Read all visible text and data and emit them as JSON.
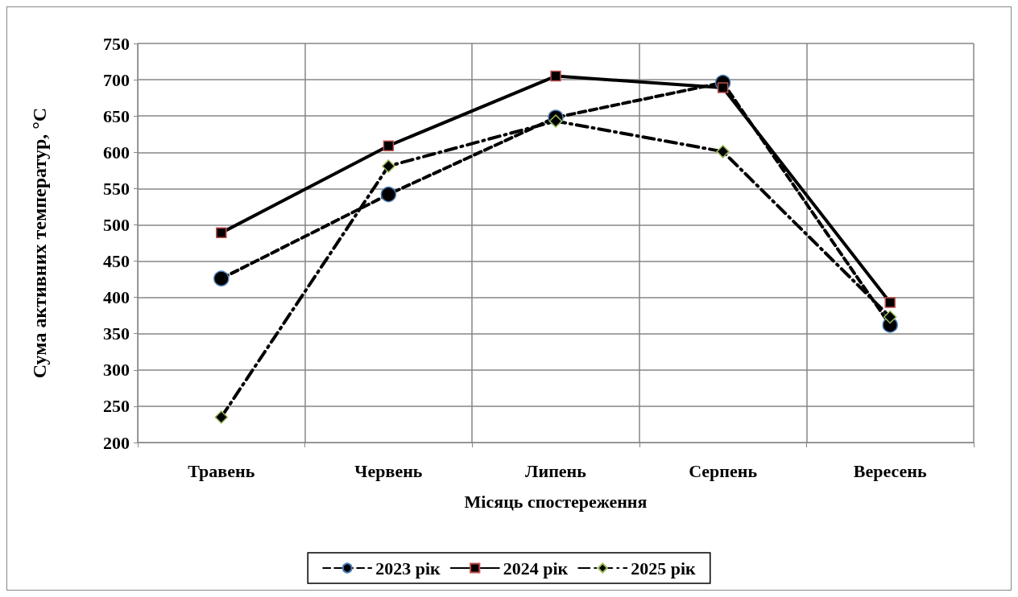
{
  "chart_data": {
    "type": "line",
    "xlabel": "Місяць спостереження",
    "ylabel": "Сума активних температур, °C",
    "categories": [
      "Травень",
      "Червень",
      "Липень",
      "Серпень",
      "Вересень"
    ],
    "series": [
      {
        "name": "2023 рік",
        "color": "#000000",
        "marker": "circle",
        "line_style": "dashed",
        "values": [
          426,
          542,
          648,
          696,
          362
        ]
      },
      {
        "name": "2024 рік",
        "color": "#000000",
        "marker": "square",
        "line_style": "solid",
        "values": [
          489,
          609,
          705,
          689,
          393
        ]
      },
      {
        "name": "2025 рік",
        "color": "#000000",
        "marker": "diamond",
        "line_style": "dashdot",
        "values": [
          235,
          581,
          643,
          601,
          373
        ]
      }
    ],
    "ylim": [
      200,
      750
    ],
    "yticks": [
      200,
      250,
      300,
      350,
      400,
      450,
      500,
      550,
      600,
      650,
      700,
      750
    ],
    "grid": true,
    "legend": "bottom"
  }
}
